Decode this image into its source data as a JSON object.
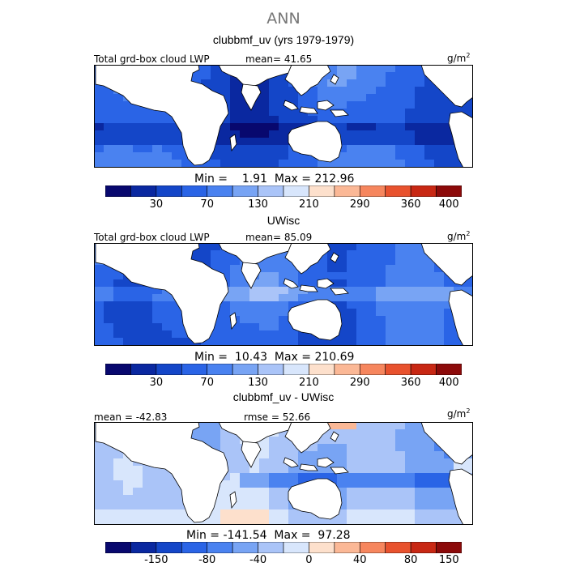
{
  "title": "ANN",
  "panels": [
    {
      "subtitle": "clubbmf_uv (yrs 1979-1979)",
      "left_label": "Total grd-box cloud LWP",
      "center_label": "mean=  41.65",
      "unit": "g/m",
      "unit_sup": "2",
      "stats": "Min =    1.91  Max = 212.96",
      "ticks": [
        "30",
        "70",
        "130",
        "210",
        "290",
        "360",
        "400"
      ],
      "palette": "abs",
      "style": "low"
    },
    {
      "subtitle": "UWisc",
      "left_label": "Total grd-box cloud LWP",
      "center_label": "mean=  85.09",
      "unit": "g/m",
      "unit_sup": "2",
      "stats": "Min =  10.43  Max = 210.69",
      "ticks": [
        "30",
        "70",
        "130",
        "210",
        "290",
        "360",
        "400"
      ],
      "palette": "abs",
      "style": "mid"
    },
    {
      "subtitle": "clubbmf_uv - UWisc",
      "left_label": "mean = -42.83",
      "center_label": "rmse =  52.66",
      "unit": "g/m",
      "unit_sup": "2",
      "stats": "Min = -141.54  Max =  97.28",
      "ticks": [
        "-150",
        "-80",
        "-40",
        "0",
        "40",
        "80",
        "150"
      ],
      "palette": "diff",
      "style": "diff"
    }
  ],
  "colors": {
    "abs": [
      "#08086e",
      "#0a28a0",
      "#1446c8",
      "#2a64e6",
      "#4a82f0",
      "#78a4f4",
      "#aac4f8",
      "#d8e6fc",
      "#fde0cc",
      "#fbb896",
      "#f6865e",
      "#e8522e",
      "#c82814",
      "#8c0a0a"
    ],
    "diff": [
      "#08086e",
      "#0a28a0",
      "#1446c8",
      "#2a64e6",
      "#4a82f0",
      "#78a4f4",
      "#aac4f8",
      "#d8e6fc",
      "#fde0cc",
      "#fbb896",
      "#f6865e",
      "#e8522e",
      "#c82814",
      "#8c0a0a"
    ],
    "land": "#ffffff",
    "coast": "#000000"
  }
}
